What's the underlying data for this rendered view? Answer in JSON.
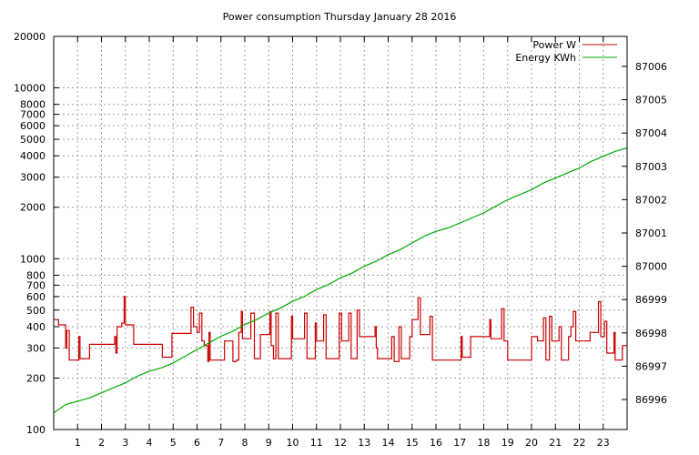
{
  "chart_data": {
    "type": "line",
    "title": "Power consumption Thursday January 28 2016",
    "xlabel": "",
    "ylabel": "",
    "y2label": "",
    "x_ticks": [
      "1",
      "2",
      "3",
      "4",
      "5",
      "6",
      "7",
      "8",
      "9",
      "10",
      "11",
      "12",
      "13",
      "14",
      "15",
      "16",
      "17",
      "18",
      "19",
      "20",
      "21",
      "22",
      "23"
    ],
    "xlim": [
      0,
      24
    ],
    "y_left": {
      "scale": "log",
      "lim": [
        100,
        20000
      ],
      "ticks": [
        100,
        200,
        300,
        400,
        500,
        600,
        700,
        800,
        1000,
        2000,
        3000,
        4000,
        5000,
        6000,
        7000,
        8000,
        10000,
        20000
      ],
      "tick_labels": [
        "100",
        "200",
        "300",
        "400",
        "500",
        "600",
        "700",
        "800",
        "1000",
        "2000",
        "3000",
        "4000",
        "5000",
        "6000",
        "7000",
        "8000",
        "10000",
        "20000"
      ]
    },
    "y_right": {
      "scale": "linear",
      "lim": [
        86995.1,
        87006.9
      ],
      "ticks": [
        86996,
        86997,
        86998,
        86999,
        87000,
        87001,
        87002,
        87003,
        87004,
        87005,
        87006
      ],
      "tick_labels": [
        "86996",
        "86997",
        "86998",
        "86999",
        "87000",
        "87001",
        "87002",
        "87003",
        "87004",
        "87005",
        "87006"
      ]
    },
    "grid": true,
    "legend_position": "top-right",
    "series": [
      {
        "name": "Power W",
        "axis": "left",
        "color": "#cc0000",
        "style": "steps",
        "points": [
          [
            0.0,
            440
          ],
          [
            0.2,
            410
          ],
          [
            0.5,
            300
          ],
          [
            0.55,
            380
          ],
          [
            0.65,
            255
          ],
          [
            0.9,
            255
          ],
          [
            1.05,
            350
          ],
          [
            1.1,
            260
          ],
          [
            1.4,
            260
          ],
          [
            1.5,
            315
          ],
          [
            2.4,
            315
          ],
          [
            2.55,
            350
          ],
          [
            2.6,
            280
          ],
          [
            2.65,
            400
          ],
          [
            2.85,
            420
          ],
          [
            2.95,
            600
          ],
          [
            3.0,
            410
          ],
          [
            3.3,
            410
          ],
          [
            3.35,
            315
          ],
          [
            4.5,
            315
          ],
          [
            4.55,
            265
          ],
          [
            4.9,
            265
          ],
          [
            4.95,
            365
          ],
          [
            5.7,
            365
          ],
          [
            5.75,
            520
          ],
          [
            5.85,
            400
          ],
          [
            6.0,
            370
          ],
          [
            6.1,
            480
          ],
          [
            6.2,
            330
          ],
          [
            6.3,
            310
          ],
          [
            6.45,
            250
          ],
          [
            6.5,
            370
          ],
          [
            6.55,
            255
          ],
          [
            7.05,
            255
          ],
          [
            7.15,
            330
          ],
          [
            7.4,
            330
          ],
          [
            7.5,
            250
          ],
          [
            7.65,
            255
          ],
          [
            7.75,
            370
          ],
          [
            7.85,
            490
          ],
          [
            7.9,
            340
          ],
          [
            8.2,
            340
          ],
          [
            8.25,
            480
          ],
          [
            8.4,
            260
          ],
          [
            8.6,
            260
          ],
          [
            8.65,
            360
          ],
          [
            9.0,
            360
          ],
          [
            9.05,
            490
          ],
          [
            9.1,
            310
          ],
          [
            9.2,
            260
          ],
          [
            9.3,
            480
          ],
          [
            9.4,
            260
          ],
          [
            9.9,
            260
          ],
          [
            9.95,
            460
          ],
          [
            10.0,
            340
          ],
          [
            10.4,
            340
          ],
          [
            10.5,
            480
          ],
          [
            10.6,
            260
          ],
          [
            10.9,
            260
          ],
          [
            10.95,
            420
          ],
          [
            11.0,
            330
          ],
          [
            11.2,
            330
          ],
          [
            11.3,
            470
          ],
          [
            11.4,
            260
          ],
          [
            11.9,
            260
          ],
          [
            11.95,
            480
          ],
          [
            12.05,
            330
          ],
          [
            12.3,
            330
          ],
          [
            12.35,
            480
          ],
          [
            12.45,
            260
          ],
          [
            12.65,
            260
          ],
          [
            12.7,
            500
          ],
          [
            12.8,
            350
          ],
          [
            13.4,
            350
          ],
          [
            13.45,
            400
          ],
          [
            13.5,
            300
          ],
          [
            13.55,
            260
          ],
          [
            14.1,
            260
          ],
          [
            14.15,
            350
          ],
          [
            14.25,
            250
          ],
          [
            14.4,
            250
          ],
          [
            14.45,
            400
          ],
          [
            14.55,
            260
          ],
          [
            14.8,
            260
          ],
          [
            14.9,
            350
          ],
          [
            15.0,
            440
          ],
          [
            15.2,
            440
          ],
          [
            15.25,
            590
          ],
          [
            15.35,
            360
          ],
          [
            15.7,
            360
          ],
          [
            15.75,
            460
          ],
          [
            15.85,
            255
          ],
          [
            17.0,
            255
          ],
          [
            17.05,
            350
          ],
          [
            17.1,
            265
          ],
          [
            17.4,
            265
          ],
          [
            17.45,
            350
          ],
          [
            18.2,
            350
          ],
          [
            18.25,
            440
          ],
          [
            18.3,
            340
          ],
          [
            18.7,
            340
          ],
          [
            18.75,
            510
          ],
          [
            18.85,
            330
          ],
          [
            18.95,
            330
          ],
          [
            19.0,
            255
          ],
          [
            19.95,
            255
          ],
          [
            20.0,
            350
          ],
          [
            20.2,
            350
          ],
          [
            20.25,
            330
          ],
          [
            20.4,
            330
          ],
          [
            20.5,
            450
          ],
          [
            20.6,
            255
          ],
          [
            20.7,
            255
          ],
          [
            20.75,
            460
          ],
          [
            20.85,
            330
          ],
          [
            21.1,
            330
          ],
          [
            21.15,
            400
          ],
          [
            21.25,
            255
          ],
          [
            21.5,
            255
          ],
          [
            21.55,
            350
          ],
          [
            21.65,
            400
          ],
          [
            21.75,
            490
          ],
          [
            21.85,
            330
          ],
          [
            22.4,
            330
          ],
          [
            22.45,
            370
          ],
          [
            22.75,
            370
          ],
          [
            22.8,
            560
          ],
          [
            22.9,
            350
          ],
          [
            23.0,
            350
          ],
          [
            23.05,
            430
          ],
          [
            23.15,
            280
          ],
          [
            23.4,
            280
          ],
          [
            23.45,
            370
          ],
          [
            23.5,
            255
          ],
          [
            23.75,
            255
          ],
          [
            23.8,
            310
          ],
          [
            24.0,
            310
          ]
        ]
      },
      {
        "name": "Energy KWh",
        "axis": "right",
        "color": "#00aa00",
        "style": "line",
        "points": [
          [
            0.0,
            86995.6
          ],
          [
            0.5,
            86995.85
          ],
          [
            1.0,
            86995.95
          ],
          [
            1.5,
            86996.05
          ],
          [
            2.0,
            86996.2
          ],
          [
            2.5,
            86996.35
          ],
          [
            3.0,
            86996.5
          ],
          [
            3.5,
            86996.7
          ],
          [
            4.0,
            86996.85
          ],
          [
            4.5,
            86996.95
          ],
          [
            5.0,
            86997.1
          ],
          [
            5.5,
            86997.3
          ],
          [
            6.0,
            86997.5
          ],
          [
            6.5,
            86997.7
          ],
          [
            7.0,
            86997.9
          ],
          [
            7.5,
            86998.05
          ],
          [
            8.0,
            86998.25
          ],
          [
            8.5,
            86998.4
          ],
          [
            9.0,
            86998.6
          ],
          [
            9.5,
            86998.75
          ],
          [
            10.0,
            86998.95
          ],
          [
            10.5,
            86999.1
          ],
          [
            11.0,
            86999.3
          ],
          [
            11.5,
            86999.45
          ],
          [
            12.0,
            86999.65
          ],
          [
            12.5,
            86999.8
          ],
          [
            13.0,
            87000.0
          ],
          [
            13.5,
            87000.15
          ],
          [
            14.0,
            87000.35
          ],
          [
            14.5,
            87000.5
          ],
          [
            15.0,
            87000.7
          ],
          [
            15.5,
            87000.9
          ],
          [
            16.0,
            87001.05
          ],
          [
            16.5,
            87001.15
          ],
          [
            17.0,
            87001.3
          ],
          [
            17.5,
            87001.45
          ],
          [
            18.0,
            87001.6
          ],
          [
            18.5,
            87001.8
          ],
          [
            19.0,
            87002.0
          ],
          [
            19.5,
            87002.15
          ],
          [
            20.0,
            87002.3
          ],
          [
            20.5,
            87002.5
          ],
          [
            21.0,
            87002.65
          ],
          [
            21.5,
            87002.8
          ],
          [
            22.0,
            87002.95
          ],
          [
            22.5,
            87003.15
          ],
          [
            23.0,
            87003.3
          ],
          [
            23.5,
            87003.45
          ],
          [
            24.0,
            87003.55
          ]
        ]
      }
    ]
  }
}
